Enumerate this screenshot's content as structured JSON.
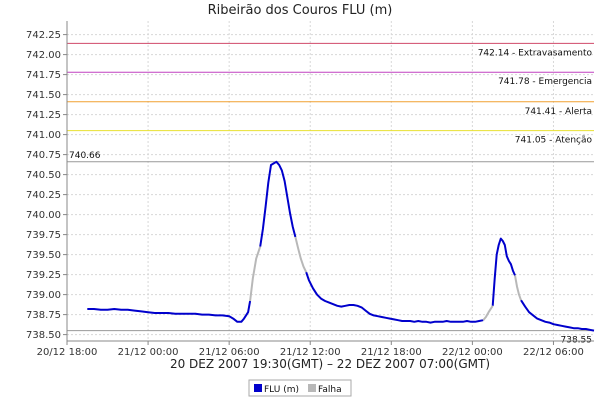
{
  "chart_data": {
    "type": "line",
    "title": "Ribeirão dos Couros FLU (m)",
    "subtitle": "20 DEZ 2007 19:30(GMT) – 22 DEZ 2007 07:00(GMT)",
    "xlabel": "",
    "ylabel": "",
    "x_ticks": [
      "20/12 18:00",
      "21/12 00:00",
      "21/12 06:00",
      "21/12 12:00",
      "21/12 18:00",
      "22/12 00:00",
      "22/12 06:00"
    ],
    "x_range_hours": [
      0,
      39
    ],
    "y_ticks": [
      "742.25",
      "742.00",
      "741.75",
      "741.50",
      "741.25",
      "741.00",
      "740.75",
      "740.50",
      "740.25",
      "740.00",
      "739.75",
      "739.50",
      "739.25",
      "739.00",
      "738.75",
      "738.50"
    ],
    "ylim": [
      738.42,
      742.42
    ],
    "grid": true,
    "thresholds": [
      {
        "label": "742.14 - Extravasamento",
        "value": 742.14,
        "color": "#d04a6a"
      },
      {
        "label": "741.78 - Emergencia",
        "value": 741.78,
        "color": "#c040c0"
      },
      {
        "label": "741.41 - Alerta",
        "value": 741.41,
        "color": "#f0a030"
      },
      {
        "label": "741.05 - Atenção",
        "value": 741.05,
        "color": "#e8e030"
      }
    ],
    "markers": [
      {
        "label": "740.66",
        "value": 740.66,
        "color": "#999999",
        "side": "left"
      },
      {
        "label": "738.55",
        "value": 738.55,
        "color": "#999999",
        "side": "right"
      }
    ],
    "series": [
      {
        "name": "FLU (m)",
        "color": "#0000cc",
        "segments": [
          [
            [
              1.5,
              738.82
            ],
            [
              2.0,
              738.82
            ],
            [
              2.5,
              738.81
            ],
            [
              3.0,
              738.81
            ],
            [
              3.5,
              738.82
            ],
            [
              4.0,
              738.81
            ],
            [
              4.5,
              738.81
            ],
            [
              5.0,
              738.8
            ],
            [
              5.5,
              738.79
            ],
            [
              6.0,
              738.78
            ],
            [
              6.5,
              738.77
            ],
            [
              7.0,
              738.77
            ],
            [
              7.5,
              738.77
            ],
            [
              8.0,
              738.76
            ],
            [
              8.5,
              738.76
            ],
            [
              9.0,
              738.76
            ],
            [
              9.5,
              738.76
            ],
            [
              10.0,
              738.75
            ],
            [
              10.5,
              738.75
            ],
            [
              11.0,
              738.74
            ],
            [
              11.5,
              738.74
            ],
            [
              12.0,
              738.73
            ],
            [
              12.3,
              738.7
            ],
            [
              12.6,
              738.66
            ],
            [
              12.9,
              738.66
            ],
            [
              13.1,
              738.7
            ],
            [
              13.4,
              738.78
            ],
            [
              13.55,
              738.92
            ]
          ],
          [
            [
              14.3,
              739.6
            ],
            [
              14.5,
              739.82
            ],
            [
              14.7,
              740.1
            ],
            [
              14.9,
              740.4
            ],
            [
              15.1,
              740.62
            ],
            [
              15.3,
              740.64
            ],
            [
              15.5,
              740.66
            ],
            [
              15.7,
              740.62
            ],
            [
              15.9,
              740.55
            ],
            [
              16.1,
              740.42
            ],
            [
              16.3,
              740.22
            ],
            [
              16.5,
              740.02
            ],
            [
              16.7,
              739.85
            ],
            [
              16.9,
              739.72
            ]
          ],
          [
            [
              17.7,
              739.28
            ],
            [
              17.9,
              739.18
            ],
            [
              18.2,
              739.08
            ],
            [
              18.5,
              739.0
            ],
            [
              18.8,
              738.95
            ],
            [
              19.1,
              738.92
            ],
            [
              19.4,
              738.9
            ],
            [
              19.7,
              738.88
            ],
            [
              20.0,
              738.86
            ],
            [
              20.3,
              738.85
            ],
            [
              20.6,
              738.86
            ],
            [
              20.9,
              738.87
            ],
            [
              21.2,
              738.87
            ],
            [
              21.5,
              738.86
            ],
            [
              21.8,
              738.84
            ],
            [
              22.1,
              738.8
            ],
            [
              22.4,
              738.76
            ],
            [
              22.7,
              738.74
            ],
            [
              23.0,
              738.73
            ],
            [
              23.3,
              738.72
            ],
            [
              23.6,
              738.71
            ],
            [
              23.9,
              738.7
            ],
            [
              24.2,
              738.69
            ],
            [
              24.5,
              738.68
            ],
            [
              24.8,
              738.67
            ],
            [
              25.1,
              738.67
            ],
            [
              25.4,
              738.67
            ],
            [
              25.7,
              738.66
            ],
            [
              26.0,
              738.67
            ],
            [
              26.3,
              738.66
            ],
            [
              26.6,
              738.66
            ],
            [
              26.9,
              738.65
            ],
            [
              27.2,
              738.66
            ],
            [
              27.5,
              738.66
            ],
            [
              27.8,
              738.66
            ],
            [
              28.1,
              738.67
            ],
            [
              28.4,
              738.66
            ],
            [
              28.7,
              738.66
            ],
            [
              29.0,
              738.66
            ],
            [
              29.3,
              738.66
            ],
            [
              29.6,
              738.67
            ],
            [
              29.9,
              738.66
            ],
            [
              30.2,
              738.66
            ],
            [
              30.5,
              738.67
            ],
            [
              30.8,
              738.68
            ]
          ],
          [
            [
              31.5,
              738.86
            ],
            [
              31.65,
              739.2
            ],
            [
              31.8,
              739.5
            ],
            [
              31.95,
              739.62
            ],
            [
              32.1,
              739.7
            ],
            [
              32.25,
              739.67
            ],
            [
              32.4,
              739.62
            ],
            [
              32.55,
              739.48
            ],
            [
              32.7,
              739.42
            ],
            [
              32.85,
              739.38
            ],
            [
              33.0,
              739.3
            ],
            [
              33.15,
              739.24
            ]
          ],
          [
            [
              33.6,
              738.93
            ],
            [
              33.9,
              738.85
            ],
            [
              34.2,
              738.78
            ],
            [
              34.5,
              738.74
            ],
            [
              34.8,
              738.7
            ],
            [
              35.1,
              738.68
            ],
            [
              35.4,
              738.66
            ],
            [
              35.7,
              738.65
            ],
            [
              36.0,
              738.63
            ],
            [
              36.3,
              738.62
            ],
            [
              36.6,
              738.61
            ],
            [
              36.9,
              738.6
            ],
            [
              37.2,
              738.59
            ],
            [
              37.5,
              738.58
            ],
            [
              37.8,
              738.58
            ],
            [
              38.1,
              738.57
            ],
            [
              38.4,
              738.57
            ],
            [
              38.7,
              738.56
            ],
            [
              39.0,
              738.55
            ]
          ]
        ]
      },
      {
        "name": "Falha",
        "color": "#b8b8b8",
        "segments": [
          [
            [
              13.55,
              738.92
            ],
            [
              13.75,
              739.2
            ],
            [
              14.0,
              739.45
            ],
            [
              14.3,
              739.6
            ]
          ],
          [
            [
              16.9,
              739.72
            ],
            [
              17.1,
              739.58
            ],
            [
              17.3,
              739.45
            ],
            [
              17.5,
              739.35
            ],
            [
              17.7,
              739.28
            ]
          ],
          [
            [
              30.8,
              738.68
            ],
            [
              31.0,
              738.72
            ],
            [
              31.2,
              738.78
            ],
            [
              31.5,
              738.86
            ]
          ],
          [
            [
              33.15,
              739.24
            ],
            [
              33.3,
              739.1
            ],
            [
              33.45,
              739.0
            ],
            [
              33.6,
              738.93
            ]
          ]
        ]
      }
    ]
  }
}
